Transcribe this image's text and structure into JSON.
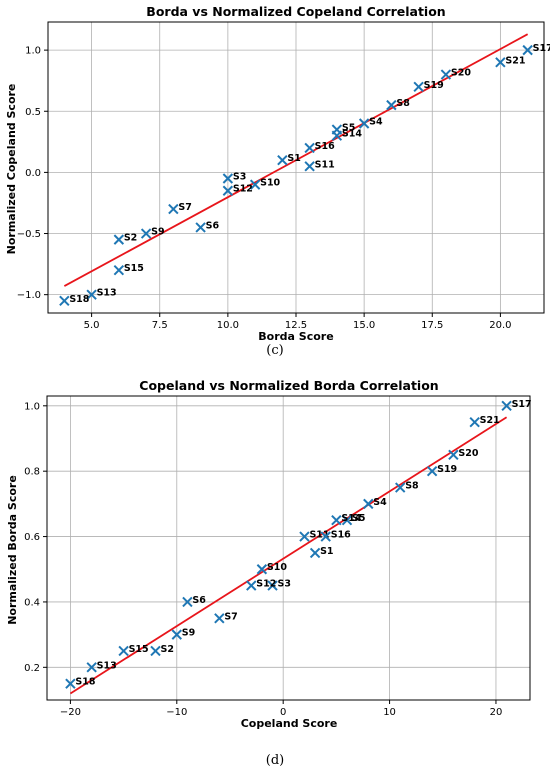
{
  "chart_data": [
    {
      "id": "c",
      "type": "scatter",
      "caption": "(c)",
      "title": "Borda vs Normalized Copeland Correlation",
      "xlabel": "Borda Score",
      "ylabel": "Normalized Copeland Score",
      "xlim": [
        3.4,
        21.6
      ],
      "ylim": [
        -1.15,
        1.23
      ],
      "xticks": [
        5.0,
        7.5,
        10.0,
        12.5,
        15.0,
        17.5,
        20.0
      ],
      "xtick_labels": [
        "5.0",
        "7.5",
        "10.0",
        "12.5",
        "15.0",
        "17.5",
        "20.0"
      ],
      "yticks": [
        -1.0,
        -0.5,
        0.0,
        0.5,
        1.0
      ],
      "ytick_labels": [
        "−1.0",
        "−0.5",
        "0.0",
        "0.5",
        "1.0"
      ],
      "grid": true,
      "marker": "x",
      "marker_color": "#1f77b4",
      "fit_line": {
        "color": "#e8151b",
        "x": [
          4,
          21
        ],
        "y": [
          -0.93,
          1.13
        ]
      },
      "points": [
        {
          "label": "S1",
          "x": 12,
          "y": 0.1
        },
        {
          "label": "S2",
          "x": 6,
          "y": -0.55
        },
        {
          "label": "S3",
          "x": 10,
          "y": -0.05
        },
        {
          "label": "S4",
          "x": 15,
          "y": 0.4
        },
        {
          "label": "S5",
          "x": 14,
          "y": 0.35
        },
        {
          "label": "S6",
          "x": 9,
          "y": -0.45
        },
        {
          "label": "S7",
          "x": 8,
          "y": -0.3
        },
        {
          "label": "S8",
          "x": 16,
          "y": 0.55
        },
        {
          "label": "S9",
          "x": 7,
          "y": -0.5
        },
        {
          "label": "S10",
          "x": 11,
          "y": -0.1
        },
        {
          "label": "S11",
          "x": 13,
          "y": 0.05
        },
        {
          "label": "S12",
          "x": 10,
          "y": -0.15
        },
        {
          "label": "S13",
          "x": 5,
          "y": -1.0
        },
        {
          "label": "S14",
          "x": 14,
          "y": 0.3
        },
        {
          "label": "S15",
          "x": 6,
          "y": -0.8
        },
        {
          "label": "S16",
          "x": 13,
          "y": 0.2
        },
        {
          "label": "S17",
          "x": 21,
          "y": 1.0
        },
        {
          "label": "S18",
          "x": 4,
          "y": -1.05
        },
        {
          "label": "S19",
          "x": 17,
          "y": 0.7
        },
        {
          "label": "S20",
          "x": 18,
          "y": 0.8
        },
        {
          "label": "S21",
          "x": 20,
          "y": 0.9
        }
      ]
    },
    {
      "id": "d",
      "type": "scatter",
      "caption": "(d)",
      "title": "Copeland vs Normalized Borda Correlation",
      "xlabel": "Copeland Score",
      "ylabel": "Normalized Borda Score",
      "xlim": [
        -22.2,
        23.2
      ],
      "ylim": [
        0.1,
        1.03
      ],
      "xticks": [
        -20,
        -10,
        0,
        10,
        20
      ],
      "xtick_labels": [
        "−20",
        "−10",
        "0",
        "10",
        "20"
      ],
      "yticks": [
        0.2,
        0.4,
        0.6,
        0.8,
        1.0
      ],
      "ytick_labels": [
        "0.2",
        "0.4",
        "0.6",
        "0.8",
        "1.0"
      ],
      "grid": true,
      "marker": "x",
      "marker_color": "#1f77b4",
      "fit_line": {
        "color": "#e8151b",
        "x": [
          -20,
          21
        ],
        "y": [
          0.12,
          0.965
        ]
      },
      "points": [
        {
          "label": "S1",
          "x": 3,
          "y": 0.55
        },
        {
          "label": "S2",
          "x": -12,
          "y": 0.25
        },
        {
          "label": "S3",
          "x": -1,
          "y": 0.45
        },
        {
          "label": "S4",
          "x": 8,
          "y": 0.7
        },
        {
          "label": "S5",
          "x": 6,
          "y": 0.65
        },
        {
          "label": "S6",
          "x": -9,
          "y": 0.4
        },
        {
          "label": "S7",
          "x": -6,
          "y": 0.35
        },
        {
          "label": "S8",
          "x": 11,
          "y": 0.75
        },
        {
          "label": "S9",
          "x": -10,
          "y": 0.3
        },
        {
          "label": "S10",
          "x": -2,
          "y": 0.5
        },
        {
          "label": "S11",
          "x": 2,
          "y": 0.6
        },
        {
          "label": "S12",
          "x": -3,
          "y": 0.45
        },
        {
          "label": "S13",
          "x": -18,
          "y": 0.2
        },
        {
          "label": "S14",
          "x": 5,
          "y": 0.65
        },
        {
          "label": "S15",
          "x": -15,
          "y": 0.25
        },
        {
          "label": "S16",
          "x": 4,
          "y": 0.6
        },
        {
          "label": "S17",
          "x": 21,
          "y": 1.0
        },
        {
          "label": "S18",
          "x": -20,
          "y": 0.15
        },
        {
          "label": "S19",
          "x": 14,
          "y": 0.8
        },
        {
          "label": "S20",
          "x": 16,
          "y": 0.85
        },
        {
          "label": "S21",
          "x": 18,
          "y": 0.95
        }
      ]
    }
  ]
}
